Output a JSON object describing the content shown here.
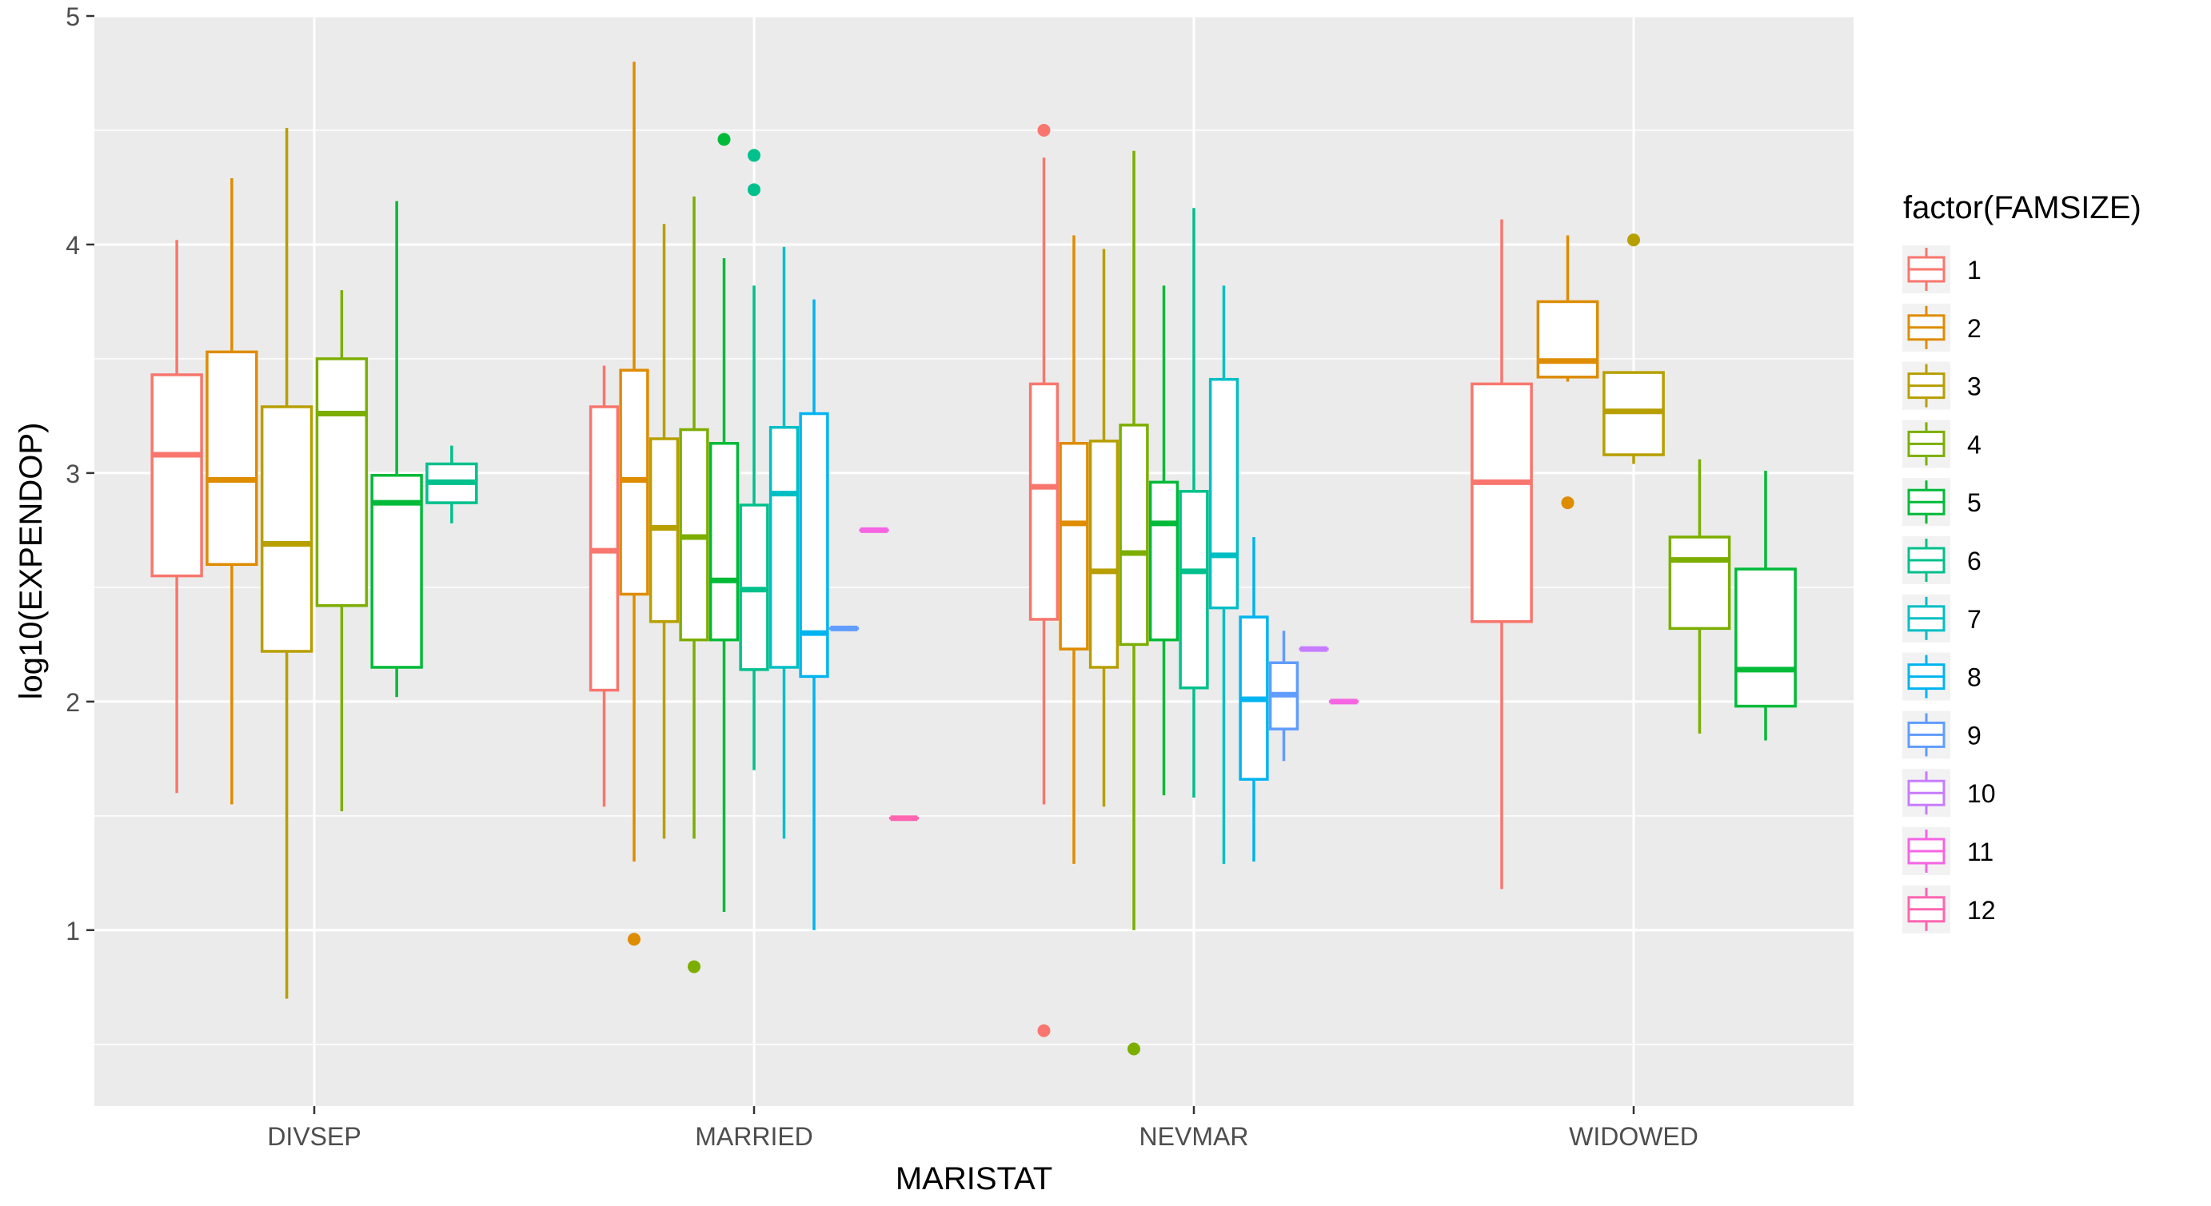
{
  "chart_data": {
    "type": "boxplot",
    "xlabel": "MARISTAT",
    "ylabel": "log10(EXPENDOP)",
    "ylim": [
      0.23,
      5.0
    ],
    "yticks": [
      1,
      2,
      3,
      4,
      5
    ],
    "categories": [
      "DIVSEP",
      "MARRIED",
      "NEVMAR",
      "WIDOWED"
    ],
    "background": "#EBEBEB",
    "grid": true,
    "legend": {
      "title": "factor(FAMSIZE)",
      "position": "right",
      "entries": [
        {
          "label": "1",
          "color": "#F8766D"
        },
        {
          "label": "2",
          "color": "#DE8C00"
        },
        {
          "label": "3",
          "color": "#B79F00"
        },
        {
          "label": "4",
          "color": "#7CAE00"
        },
        {
          "label": "5",
          "color": "#00BA38"
        },
        {
          "label": "6",
          "color": "#00C08B"
        },
        {
          "label": "7",
          "color": "#00BFC4"
        },
        {
          "label": "8",
          "color": "#00B4F0"
        },
        {
          "label": "9",
          "color": "#619CFF"
        },
        {
          "label": "10",
          "color": "#C77CFF"
        },
        {
          "label": "11",
          "color": "#F564E3"
        },
        {
          "label": "12",
          "color": "#FF64B0"
        }
      ]
    },
    "boxes": [
      {
        "category": "DIVSEP",
        "famsize": "1",
        "min": 1.6,
        "q1": 2.55,
        "median": 3.08,
        "q3": 3.43,
        "max": 4.02,
        "outliers": []
      },
      {
        "category": "DIVSEP",
        "famsize": "2",
        "min": 1.55,
        "q1": 2.6,
        "median": 2.97,
        "q3": 3.53,
        "max": 4.29,
        "outliers": []
      },
      {
        "category": "DIVSEP",
        "famsize": "3",
        "min": 0.7,
        "q1": 2.22,
        "median": 2.69,
        "q3": 3.29,
        "max": 4.51,
        "outliers": []
      },
      {
        "category": "DIVSEP",
        "famsize": "4",
        "min": 1.52,
        "q1": 2.42,
        "median": 3.26,
        "q3": 3.5,
        "max": 3.8,
        "outliers": []
      },
      {
        "category": "DIVSEP",
        "famsize": "5",
        "min": 2.02,
        "q1": 2.15,
        "median": 2.87,
        "q3": 2.99,
        "max": 4.19,
        "outliers": []
      },
      {
        "category": "DIVSEP",
        "famsize": "6",
        "min": 2.78,
        "q1": 2.87,
        "median": 2.96,
        "q3": 3.04,
        "max": 3.12,
        "outliers": []
      },
      {
        "category": "MARRIED",
        "famsize": "1",
        "min": 1.54,
        "q1": 2.05,
        "median": 2.66,
        "q3": 3.29,
        "max": 3.47,
        "outliers": []
      },
      {
        "category": "MARRIED",
        "famsize": "2",
        "min": 1.3,
        "q1": 2.47,
        "median": 2.97,
        "q3": 3.45,
        "max": 4.8,
        "outliers": [
          0.96
        ]
      },
      {
        "category": "MARRIED",
        "famsize": "3",
        "min": 1.4,
        "q1": 2.35,
        "median": 2.76,
        "q3": 3.15,
        "max": 4.09,
        "outliers": []
      },
      {
        "category": "MARRIED",
        "famsize": "4",
        "min": 1.4,
        "q1": 2.27,
        "median": 2.72,
        "q3": 3.19,
        "max": 4.21,
        "outliers": [
          0.84
        ]
      },
      {
        "category": "MARRIED",
        "famsize": "5",
        "min": 1.08,
        "q1": 2.27,
        "median": 2.53,
        "q3": 3.13,
        "max": 3.94,
        "outliers": [
          4.46
        ]
      },
      {
        "category": "MARRIED",
        "famsize": "6",
        "min": 1.7,
        "q1": 2.14,
        "median": 2.49,
        "q3": 2.86,
        "max": 3.82,
        "outliers": [
          4.39,
          4.24
        ]
      },
      {
        "category": "MARRIED",
        "famsize": "7",
        "min": 1.4,
        "q1": 2.15,
        "median": 2.91,
        "q3": 3.2,
        "max": 3.99,
        "outliers": []
      },
      {
        "category": "MARRIED",
        "famsize": "8",
        "min": 1.0,
        "q1": 2.11,
        "median": 2.3,
        "q3": 3.26,
        "max": 3.76,
        "outliers": []
      },
      {
        "category": "MARRIED",
        "famsize": "9",
        "min": 2.32,
        "q1": 2.32,
        "median": 2.32,
        "q3": 2.32,
        "max": 2.32,
        "outliers": []
      },
      {
        "category": "MARRIED",
        "famsize": "11",
        "min": 2.75,
        "q1": 2.75,
        "median": 2.75,
        "q3": 2.75,
        "max": 2.75,
        "outliers": []
      },
      {
        "category": "MARRIED",
        "famsize": "12",
        "min": 1.49,
        "q1": 1.49,
        "median": 1.49,
        "q3": 1.49,
        "max": 1.49,
        "outliers": []
      },
      {
        "category": "NEVMAR",
        "famsize": "1",
        "min": 1.55,
        "q1": 2.36,
        "median": 2.94,
        "q3": 3.39,
        "max": 4.38,
        "outliers": [
          4.5,
          0.56
        ]
      },
      {
        "category": "NEVMAR",
        "famsize": "2",
        "min": 1.29,
        "q1": 2.23,
        "median": 2.78,
        "q3": 3.13,
        "max": 4.04,
        "outliers": []
      },
      {
        "category": "NEVMAR",
        "famsize": "3",
        "min": 1.54,
        "q1": 2.15,
        "median": 2.57,
        "q3": 3.14,
        "max": 3.98,
        "outliers": []
      },
      {
        "category": "NEVMAR",
        "famsize": "4",
        "min": 1.0,
        "q1": 2.25,
        "median": 2.65,
        "q3": 3.21,
        "max": 4.41,
        "outliers": [
          0.48
        ]
      },
      {
        "category": "NEVMAR",
        "famsize": "5",
        "min": 1.59,
        "q1": 2.27,
        "median": 2.78,
        "q3": 2.96,
        "max": 3.82,
        "outliers": []
      },
      {
        "category": "NEVMAR",
        "famsize": "6",
        "min": 1.58,
        "q1": 2.06,
        "median": 2.57,
        "q3": 2.92,
        "max": 4.16,
        "outliers": []
      },
      {
        "category": "NEVMAR",
        "famsize": "7",
        "min": 1.29,
        "q1": 2.41,
        "median": 2.64,
        "q3": 3.41,
        "max": 3.82,
        "outliers": []
      },
      {
        "category": "NEVMAR",
        "famsize": "8",
        "min": 1.3,
        "q1": 1.66,
        "median": 2.01,
        "q3": 2.37,
        "max": 2.72,
        "outliers": []
      },
      {
        "category": "NEVMAR",
        "famsize": "9",
        "min": 1.74,
        "q1": 1.88,
        "median": 2.03,
        "q3": 2.17,
        "max": 2.31,
        "outliers": []
      },
      {
        "category": "NEVMAR",
        "famsize": "10",
        "min": 2.23,
        "q1": 2.23,
        "median": 2.23,
        "q3": 2.23,
        "max": 2.23,
        "outliers": []
      },
      {
        "category": "NEVMAR",
        "famsize": "11",
        "min": 2.0,
        "q1": 2.0,
        "median": 2.0,
        "q3": 2.0,
        "max": 2.0,
        "outliers": []
      },
      {
        "category": "WIDOWED",
        "famsize": "1",
        "min": 1.18,
        "q1": 2.35,
        "median": 2.96,
        "q3": 3.39,
        "max": 4.11,
        "outliers": []
      },
      {
        "category": "WIDOWED",
        "famsize": "2",
        "min": 3.4,
        "q1": 3.42,
        "median": 3.49,
        "q3": 3.75,
        "max": 4.04,
        "outliers": [
          2.87
        ]
      },
      {
        "category": "WIDOWED",
        "famsize": "3",
        "min": 3.04,
        "q1": 3.08,
        "median": 3.27,
        "q3": 3.44,
        "max": 3.44,
        "outliers": [
          4.02
        ]
      },
      {
        "category": "WIDOWED",
        "famsize": "4",
        "min": 1.86,
        "q1": 2.32,
        "median": 2.62,
        "q3": 2.72,
        "max": 3.06,
        "outliers": []
      },
      {
        "category": "WIDOWED",
        "famsize": "5",
        "min": 1.83,
        "q1": 1.98,
        "median": 2.14,
        "q3": 2.58,
        "max": 3.01,
        "outliers": []
      }
    ]
  }
}
